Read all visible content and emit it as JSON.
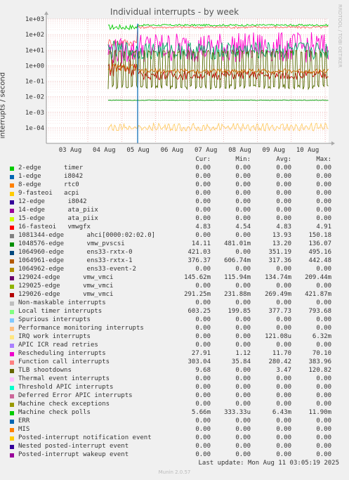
{
  "title": "Individual interrupts - by week",
  "ylabel": "interrupts / second",
  "side_text": "RRDTOOL / TOBI OETIKER",
  "footer": {
    "last_update": "Last update: Mon Aug 11 03:05:19 2025",
    "munin": "Munin 2.0.57"
  },
  "legend_header": {
    "cur": "Cur:",
    "min": "Min:",
    "avg": "Avg:",
    "max": "Max:"
  },
  "chart_data": {
    "type": "line",
    "title": "Individual interrupts - by week",
    "ylabel": "interrupts / second",
    "yscale": "log",
    "y_ticks": [
      "1e+03",
      "1e+02",
      "1e+01",
      "1e+00",
      "1e-01",
      "1e-02",
      "1e-03",
      "1e-04"
    ],
    "y_tick_values": [
      1000,
      100,
      10,
      1,
      0.1,
      0.01,
      0.001,
      0.0001
    ],
    "ylim": [
      1e-05,
      1000
    ],
    "x_ticks": [
      "03 Aug",
      "04 Aug",
      "05 Aug",
      "06 Aug",
      "07 Aug",
      "08 Aug",
      "09 Aug",
      "10 Aug"
    ],
    "grid": true,
    "series_visual": [
      {
        "name": "1064960-edge",
        "color": "#00cc00",
        "before": [
          400,
          220
        ],
        "after": [
          420,
          380
        ],
        "osc": 0.02
      },
      {
        "name": "Function call interrupts",
        "color": "#ff6666",
        "before": [
          50,
          20
        ],
        "after": [
          303,
          280
        ],
        "osc": 0.03
      },
      {
        "name": "Rescheduling interrupts",
        "color": "#ff00cc",
        "before": [
          12,
          6
        ],
        "after": [
          28,
          8
        ],
        "osc": 0.35
      },
      {
        "name": "129026-edge",
        "color": "#cc0000",
        "before": [
          2,
          0.3
        ],
        "after": [
          0.3,
          0.2
        ],
        "osc": 0.1
      },
      {
        "name": "1081344-edge",
        "color": "#00aa66",
        "before": [
          15,
          5
        ],
        "after": [
          14,
          6
        ],
        "osc": 0.2
      },
      {
        "name": "TLB shootdowns",
        "color": "#556b00",
        "before": [
          10,
          0.03
        ],
        "after": [
          9.68,
          0.03
        ],
        "osc": 1.0
      },
      {
        "name": "1064961-edge",
        "color": "#cc6600",
        "before": [
          1,
          0.5
        ],
        "after": [
          0.5,
          0.4
        ],
        "osc": 0.05
      },
      {
        "name": "Machine check polls",
        "color": "#009900",
        "before": [
          0.006,
          0.006
        ],
        "after": [
          0.006,
          0.006
        ],
        "osc": 0.01
      },
      {
        "name": "IRQ work interrupts",
        "color": "#ffcc66",
        "before": [
          0.0001,
          0.0001
        ],
        "after": [
          0.0001,
          0.0001
        ],
        "osc": 0.5
      }
    ],
    "legend": [
      {
        "name": "2-edge      timer",
        "color": "#00cc00",
        "cur": "0.00",
        "min": "0.00",
        "avg": "0.00",
        "max": "0.00"
      },
      {
        "name": "1-edge      i8042",
        "color": "#0066b3",
        "cur": "0.00",
        "min": "0.00",
        "avg": "0.00",
        "max": "0.00"
      },
      {
        "name": "8-edge      rtc0",
        "color": "#ff8000",
        "cur": "0.00",
        "min": "0.00",
        "avg": "0.00",
        "max": "0.00"
      },
      {
        "name": "9-fasteoi   acpi",
        "color": "#ffcc00",
        "cur": "0.00",
        "min": "0.00",
        "avg": "0.00",
        "max": "0.00"
      },
      {
        "name": "12-edge      i8042",
        "color": "#330099",
        "cur": "0.00",
        "min": "0.00",
        "avg": "0.00",
        "max": "0.00"
      },
      {
        "name": "14-edge      ata_piix",
        "color": "#990099",
        "cur": "0.00",
        "min": "0.00",
        "avg": "0.00",
        "max": "0.00"
      },
      {
        "name": "15-edge      ata_piix",
        "color": "#ccff00",
        "cur": "0.00",
        "min": "0.00",
        "avg": "0.00",
        "max": "0.00"
      },
      {
        "name": "16-fasteoi   vmwgfx",
        "color": "#ff0000",
        "cur": "4.83",
        "min": "4.54",
        "avg": "4.83",
        "max": "4.91"
      },
      {
        "name": "1081344-edge      ahci[0000:02:02.0]",
        "color": "#808080",
        "cur": "0.00",
        "min": "0.00",
        "avg": "13.93",
        "max": "150.18"
      },
      {
        "name": "1048576-edge      vmw_pvscsi",
        "color": "#008f00",
        "cur": "14.11",
        "min": "481.01m",
        "avg": "13.20",
        "max": "136.07"
      },
      {
        "name": "1064960-edge      ens33-rxtx-0",
        "color": "#00487d",
        "cur": "421.03",
        "min": "0.00",
        "avg": "351.19",
        "max": "495.16"
      },
      {
        "name": "1064961-edge      ens33-rxtx-1",
        "color": "#b35a00",
        "cur": "376.37",
        "min": "606.74m",
        "avg": "317.36",
        "max": "442.48"
      },
      {
        "name": "1064962-edge      ens33-event-2",
        "color": "#b38f00",
        "cur": "0.00",
        "min": "0.00",
        "avg": "0.00",
        "max": "0.00"
      },
      {
        "name": "129024-edge      vmw_vmci",
        "color": "#6b006b",
        "cur": "145.62m",
        "min": "115.94m",
        "avg": "134.74m",
        "max": "209.44m"
      },
      {
        "name": "129025-edge      vmw_vmci",
        "color": "#8fb300",
        "cur": "0.00",
        "min": "0.00",
        "avg": "0.00",
        "max": "0.00"
      },
      {
        "name": "129026-edge      vmw_vmci",
        "color": "#b30000",
        "cur": "291.25m",
        "min": "231.88m",
        "avg": "269.49m",
        "max": "421.87m"
      },
      {
        "name": "Non-maskable interrupts",
        "color": "#bebebe",
        "cur": "0.00",
        "min": "0.00",
        "avg": "0.00",
        "max": "0.00"
      },
      {
        "name": "Local timer interrupts",
        "color": "#80ff80",
        "cur": "603.25",
        "min": "199.85",
        "avg": "377.73",
        "max": "793.68"
      },
      {
        "name": "Spurious interrupts",
        "color": "#80c9ff",
        "cur": "0.00",
        "min": "0.00",
        "avg": "0.00",
        "max": "0.00"
      },
      {
        "name": "Performance monitoring interrupts",
        "color": "#ffc080",
        "cur": "0.00",
        "min": "0.00",
        "avg": "0.00",
        "max": "0.00"
      },
      {
        "name": "IRQ work interrupts",
        "color": "#ffe680",
        "cur": "0.00",
        "min": "0.00",
        "avg": "121.08u",
        "max": "6.32m"
      },
      {
        "name": "APIC ICR read retries",
        "color": "#aa80ff",
        "cur": "0.00",
        "min": "0.00",
        "avg": "0.00",
        "max": "0.00"
      },
      {
        "name": "Rescheduling interrupts",
        "color": "#ee00cc",
        "cur": "27.91",
        "min": "1.12",
        "avg": "11.70",
        "max": "70.10"
      },
      {
        "name": "Function call interrupts",
        "color": "#ff8080",
        "cur": "303.04",
        "min": "35.84",
        "avg": "280.42",
        "max": "383.96"
      },
      {
        "name": "TLB shootdowns",
        "color": "#666600",
        "cur": "9.68",
        "min": "0.00",
        "avg": "3.47",
        "max": "120.82"
      },
      {
        "name": "Thermal event interrupts",
        "color": "#ffbfff",
        "cur": "0.00",
        "min": "0.00",
        "avg": "0.00",
        "max": "0.00"
      },
      {
        "name": "Threshold APIC interrupts",
        "color": "#00ffcc",
        "cur": "0.00",
        "min": "0.00",
        "avg": "0.00",
        "max": "0.00"
      },
      {
        "name": "Deferred Error APIC interrupts",
        "color": "#cc6699",
        "cur": "0.00",
        "min": "0.00",
        "avg": "0.00",
        "max": "0.00"
      },
      {
        "name": "Machine check exceptions",
        "color": "#999900",
        "cur": "0.00",
        "min": "0.00",
        "avg": "0.00",
        "max": "0.00"
      },
      {
        "name": "Machine check polls",
        "color": "#00cc00",
        "cur": "5.66m",
        "min": "333.33u",
        "avg": "6.43m",
        "max": "11.90m"
      },
      {
        "name": "ERR",
        "color": "#0066b3",
        "cur": "0.00",
        "min": "0.00",
        "avg": "0.00",
        "max": "0.00"
      },
      {
        "name": "MIS",
        "color": "#ff8000",
        "cur": "0.00",
        "min": "0.00",
        "avg": "0.00",
        "max": "0.00"
      },
      {
        "name": "Posted-interrupt notification event",
        "color": "#ffcc00",
        "cur": "0.00",
        "min": "0.00",
        "avg": "0.00",
        "max": "0.00"
      },
      {
        "name": "Nested posted-interrupt event",
        "color": "#330099",
        "cur": "0.00",
        "min": "0.00",
        "avg": "0.00",
        "max": "0.00"
      },
      {
        "name": "Posted-interrupt wakeup event",
        "color": "#990099",
        "cur": "0.00",
        "min": "0.00",
        "avg": "0.00",
        "max": "0.00"
      }
    ]
  }
}
